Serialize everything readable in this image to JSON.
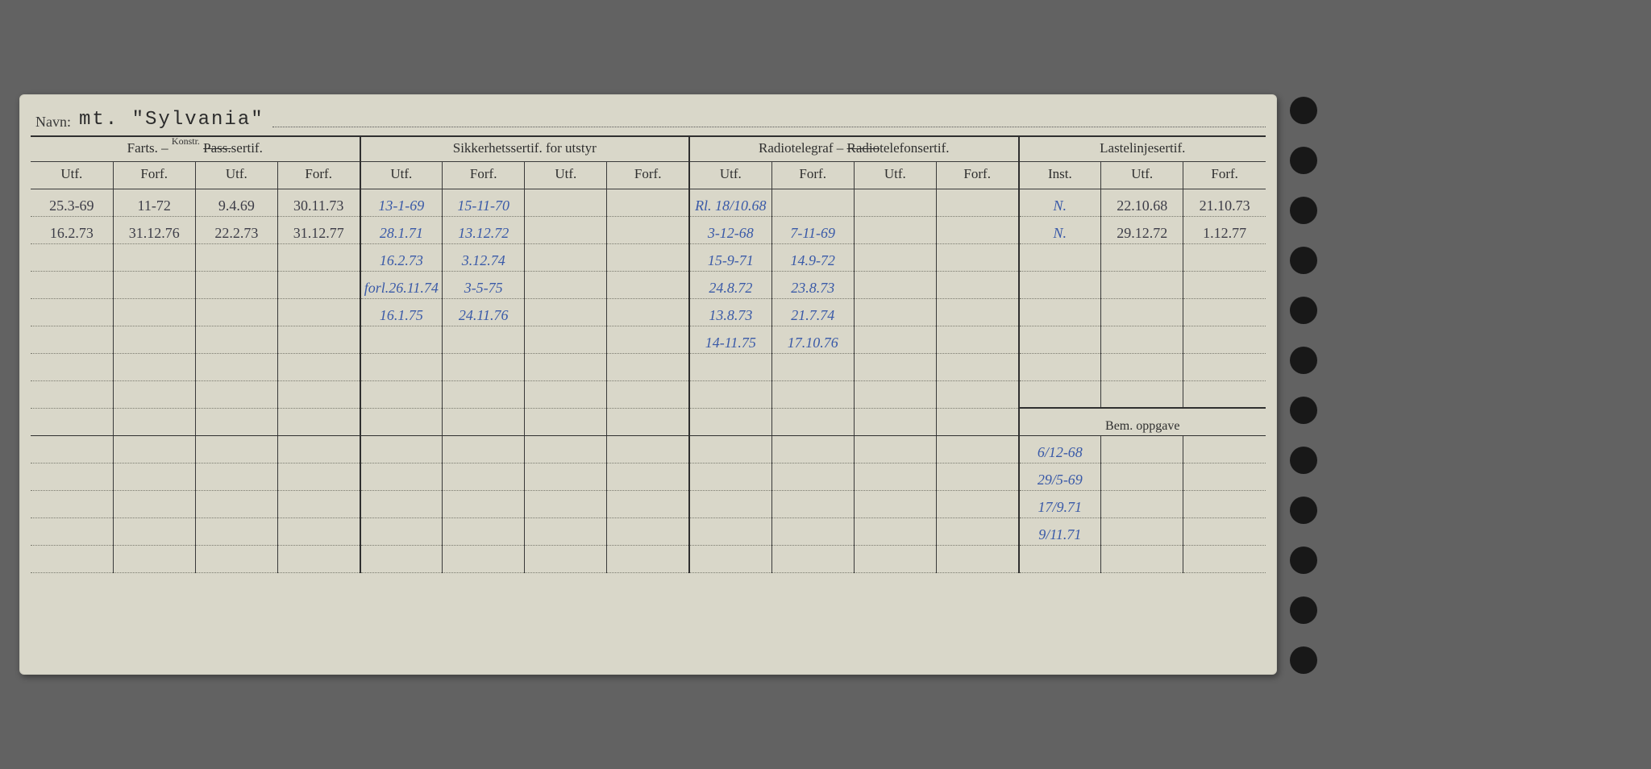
{
  "card": {
    "name_label": "Navn:",
    "name_value": "mt. \"Sylvania\"",
    "background_color": "#d9d7c9",
    "rule_color": "#2f2f2f",
    "dotted_color": "#7b7b6f",
    "hand_blue": "#3a5aa8",
    "hand_dark": "#3d3d48"
  },
  "headers": {
    "group1": "Farts. – ",
    "group1_strike": "Pass.",
    "group1_annot": "Konstr.",
    "group1_suffix": "sertif.",
    "group2": "Sikkerhetssertif. for utstyr",
    "group3": "Radiotelegraf – ",
    "group3_strike": "Radio",
    "group3_suffix": "telefonsertif.",
    "group4": "Lastelinjesertif.",
    "utf": "Utf.",
    "forf": "Forf.",
    "inst": "Inst.",
    "bem": "Bem. oppgave"
  },
  "rows": [
    {
      "c": [
        "25.3-69",
        "11-72",
        "9.4.69",
        "30.11.73",
        "13-1-69",
        "15-11-70",
        "",
        "",
        "Rl. 18/10.68",
        "",
        "",
        "",
        "N.",
        "22.10.68",
        "21.10.73"
      ],
      "style": [
        "dark",
        "dark",
        "dark",
        "dark",
        "blue",
        "blue",
        "",
        "",
        "blue",
        "",
        "",
        "",
        "blue",
        "dark",
        "dark"
      ]
    },
    {
      "c": [
        "16.2.73",
        "31.12.76",
        "22.2.73",
        "31.12.77",
        "28.1.71",
        "13.12.72",
        "",
        "",
        "3-12-68",
        "7-11-69",
        "",
        "",
        "N.",
        "29.12.72",
        "1.12.77"
      ],
      "style": [
        "dark",
        "dark",
        "dark",
        "dark",
        "blue",
        "blue",
        "",
        "",
        "blue",
        "blue",
        "",
        "",
        "blue",
        "dark",
        "dark"
      ]
    },
    {
      "c": [
        "",
        "",
        "",
        "",
        "16.2.73",
        "3.12.74",
        "",
        "",
        "15-9-71",
        "14.9-72",
        "",
        "",
        "",
        "",
        ""
      ],
      "style": [
        "",
        "",
        "",
        "",
        "blue",
        "blue",
        "",
        "",
        "blue",
        "blue",
        "",
        "",
        "",
        "",
        ""
      ]
    },
    {
      "c": [
        "",
        "",
        "",
        "",
        "forl.26.11.74",
        "3-5-75",
        "",
        "",
        "24.8.72",
        "23.8.73",
        "",
        "",
        "",
        "",
        ""
      ],
      "style": [
        "",
        "",
        "",
        "",
        "blue",
        "blue",
        "",
        "",
        "blue",
        "blue",
        "",
        "",
        "",
        "",
        ""
      ]
    },
    {
      "c": [
        "",
        "",
        "",
        "",
        "16.1.75",
        "24.11.76",
        "",
        "",
        "13.8.73",
        "21.7.74",
        "",
        "",
        "",
        "",
        ""
      ],
      "style": [
        "",
        "",
        "",
        "",
        "blue",
        "blue",
        "",
        "",
        "blue",
        "blue",
        "",
        "",
        "",
        "",
        ""
      ]
    },
    {
      "c": [
        "",
        "",
        "",
        "",
        "",
        "",
        "",
        "",
        "14-11.75",
        "17.10.76",
        "",
        "",
        "",
        "",
        ""
      ],
      "style": [
        "",
        "",
        "",
        "",
        "",
        "",
        "",
        "",
        "blue",
        "blue",
        "",
        "",
        "",
        "",
        ""
      ]
    },
    {
      "c": [
        "",
        "",
        "",
        "",
        "",
        "",
        "",
        "",
        "",
        "",
        "",
        "",
        "",
        "",
        ""
      ],
      "style": []
    },
    {
      "c": [
        "",
        "",
        "",
        "",
        "",
        "",
        "",
        "",
        "",
        "",
        "",
        "",
        "",
        "",
        ""
      ],
      "style": []
    }
  ],
  "bem_rows": [
    {
      "c": "6/12-68"
    },
    {
      "c": "29/5-69"
    },
    {
      "c": "17/9.71"
    },
    {
      "c": "9/11.71"
    },
    {
      "c": ""
    }
  ]
}
